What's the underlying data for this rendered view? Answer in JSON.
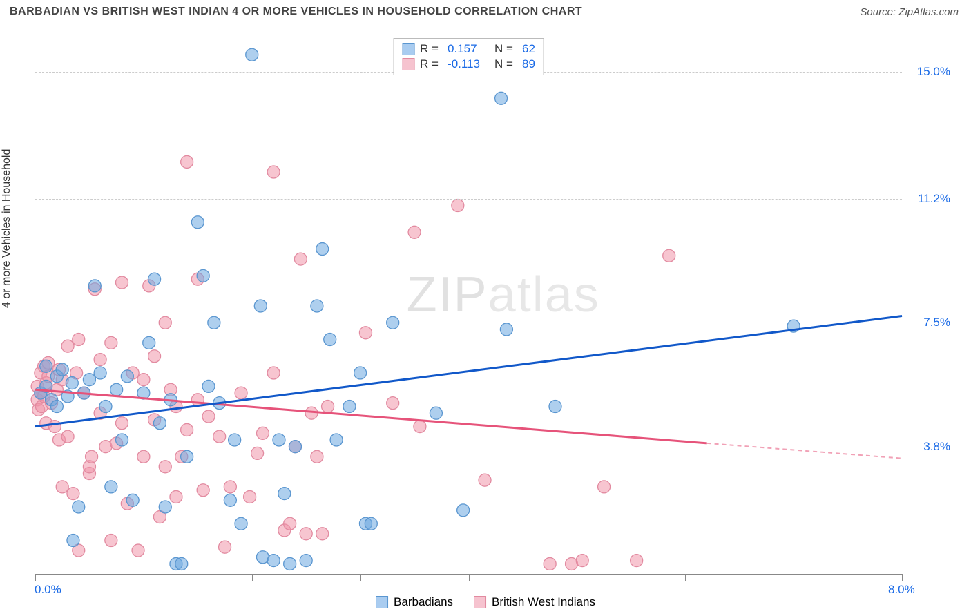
{
  "header": {
    "title": "BARBADIAN VS BRITISH WEST INDIAN 4 OR MORE VEHICLES IN HOUSEHOLD CORRELATION CHART",
    "source_prefix": "Source: ",
    "source": "ZipAtlas.com",
    "title_color": "#444444",
    "title_fontsize": 16,
    "source_color": "#555555",
    "source_fontsize": 15
  },
  "watermark": {
    "bold": "ZIP",
    "light": "atlas"
  },
  "chart": {
    "type": "scatter-correlation",
    "background_color": "#ffffff",
    "xlim": [
      0,
      8
    ],
    "ylim": [
      0,
      16
    ],
    "x_axis": {
      "left_label": "0.0%",
      "right_label": "8.0%",
      "label_color": "#1a6ae6",
      "tick_count": 9,
      "tick_color": "#888888"
    },
    "y_axis": {
      "title": "4 or more Vehicles in Household",
      "title_color": "#333333",
      "labels": [
        {
          "value": 15.0,
          "text": "15.0%"
        },
        {
          "value": 11.2,
          "text": "11.2%"
        },
        {
          "value": 7.5,
          "text": "7.5%"
        },
        {
          "value": 3.8,
          "text": "3.8%"
        }
      ],
      "label_color": "#1a6ae6",
      "grid_color": "#cccccc"
    },
    "series": [
      {
        "key": "barbadians",
        "name": "Barbadians",
        "R": "0.157",
        "N": "62",
        "marker_fill": "rgba(108,168,224,0.55)",
        "marker_stroke": "#5a96d0",
        "swatch_fill": "#a9ccf0",
        "swatch_border": "#5a96d0",
        "line_color": "#1158c9",
        "line": {
          "x1": 0,
          "y1": 4.4,
          "x2": 8,
          "y2": 7.7
        },
        "extrapolate": false,
        "marker_radius": 9,
        "points": [
          [
            0.05,
            5.4
          ],
          [
            0.1,
            5.6
          ],
          [
            0.15,
            5.2
          ],
          [
            0.1,
            6.2
          ],
          [
            0.2,
            5.0
          ],
          [
            0.2,
            5.9
          ],
          [
            0.25,
            6.1
          ],
          [
            0.3,
            5.3
          ],
          [
            0.34,
            5.7
          ],
          [
            0.35,
            1.0
          ],
          [
            0.4,
            2.0
          ],
          [
            0.45,
            5.4
          ],
          [
            0.5,
            5.8
          ],
          [
            0.55,
            8.6
          ],
          [
            0.6,
            6.0
          ],
          [
            0.65,
            5.0
          ],
          [
            0.7,
            2.6
          ],
          [
            0.75,
            5.5
          ],
          [
            0.8,
            4.0
          ],
          [
            0.85,
            5.9
          ],
          [
            0.9,
            2.2
          ],
          [
            1.0,
            5.4
          ],
          [
            1.05,
            6.9
          ],
          [
            1.1,
            8.8
          ],
          [
            1.15,
            4.5
          ],
          [
            1.2,
            2.0
          ],
          [
            1.25,
            5.2
          ],
          [
            1.3,
            0.3
          ],
          [
            1.35,
            0.3
          ],
          [
            1.4,
            3.5
          ],
          [
            1.5,
            10.5
          ],
          [
            1.55,
            8.9
          ],
          [
            1.6,
            5.6
          ],
          [
            1.65,
            7.5
          ],
          [
            1.7,
            5.1
          ],
          [
            1.8,
            2.2
          ],
          [
            1.84,
            4.0
          ],
          [
            1.9,
            1.5
          ],
          [
            2.0,
            15.5
          ],
          [
            2.08,
            8.0
          ],
          [
            2.1,
            0.5
          ],
          [
            2.2,
            0.4
          ],
          [
            2.25,
            4.0
          ],
          [
            2.3,
            2.4
          ],
          [
            2.35,
            0.3
          ],
          [
            2.4,
            3.8
          ],
          [
            2.5,
            0.4
          ],
          [
            2.65,
            9.7
          ],
          [
            2.6,
            8.0
          ],
          [
            2.72,
            7.0
          ],
          [
            2.78,
            4.0
          ],
          [
            2.9,
            5.0
          ],
          [
            3.0,
            6.0
          ],
          [
            3.05,
            1.5
          ],
          [
            3.1,
            1.5
          ],
          [
            3.3,
            7.5
          ],
          [
            3.7,
            4.8
          ],
          [
            3.95,
            1.9
          ],
          [
            4.3,
            14.2
          ],
          [
            4.35,
            7.3
          ],
          [
            4.8,
            5.0
          ],
          [
            7.0,
            7.4
          ]
        ]
      },
      {
        "key": "bwi",
        "name": "British West Indians",
        "R": "-0.113",
        "N": "89",
        "marker_fill": "rgba(240,150,170,0.55)",
        "marker_stroke": "#e28aa0",
        "swatch_fill": "#f6c3cf",
        "swatch_border": "#e28aa0",
        "line_color": "#e6537a",
        "line": {
          "x1": 0,
          "y1": 5.5,
          "x2": 6.2,
          "y2": 3.9
        },
        "extrapolate": true,
        "extrap_to": {
          "x2": 8,
          "y2": 3.45
        },
        "marker_radius": 9,
        "points": [
          [
            0.02,
            5.2
          ],
          [
            0.02,
            5.6
          ],
          [
            0.03,
            4.9
          ],
          [
            0.05,
            5.4
          ],
          [
            0.05,
            6.0
          ],
          [
            0.06,
            5.0
          ],
          [
            0.08,
            5.3
          ],
          [
            0.08,
            6.2
          ],
          [
            0.1,
            5.7
          ],
          [
            0.1,
            4.5
          ],
          [
            0.12,
            5.9
          ],
          [
            0.12,
            6.3
          ],
          [
            0.15,
            5.1
          ],
          [
            0.18,
            4.4
          ],
          [
            0.2,
            5.5
          ],
          [
            0.22,
            6.1
          ],
          [
            0.22,
            4.0
          ],
          [
            0.25,
            2.6
          ],
          [
            0.25,
            5.8
          ],
          [
            0.3,
            4.1
          ],
          [
            0.3,
            6.8
          ],
          [
            0.35,
            2.4
          ],
          [
            0.38,
            6.0
          ],
          [
            0.4,
            7.0
          ],
          [
            0.4,
            0.7
          ],
          [
            0.45,
            5.4
          ],
          [
            0.5,
            3.0
          ],
          [
            0.5,
            3.2
          ],
          [
            0.52,
            3.5
          ],
          [
            0.55,
            8.5
          ],
          [
            0.6,
            4.8
          ],
          [
            0.6,
            6.4
          ],
          [
            0.65,
            3.8
          ],
          [
            0.7,
            6.9
          ],
          [
            0.7,
            1.0
          ],
          [
            0.75,
            3.9
          ],
          [
            0.8,
            4.5
          ],
          [
            0.8,
            8.7
          ],
          [
            0.85,
            2.1
          ],
          [
            0.9,
            6.0
          ],
          [
            0.95,
            0.7
          ],
          [
            1.0,
            5.8
          ],
          [
            1.0,
            3.5
          ],
          [
            1.05,
            8.6
          ],
          [
            1.1,
            6.5
          ],
          [
            1.1,
            4.6
          ],
          [
            1.15,
            1.7
          ],
          [
            1.2,
            7.5
          ],
          [
            1.2,
            3.2
          ],
          [
            1.25,
            5.5
          ],
          [
            1.3,
            2.3
          ],
          [
            1.3,
            5.0
          ],
          [
            1.35,
            3.5
          ],
          [
            1.4,
            12.3
          ],
          [
            1.4,
            4.3
          ],
          [
            1.5,
            5.2
          ],
          [
            1.5,
            8.8
          ],
          [
            1.55,
            2.5
          ],
          [
            1.6,
            4.7
          ],
          [
            1.7,
            4.1
          ],
          [
            1.75,
            0.8
          ],
          [
            1.8,
            2.6
          ],
          [
            1.9,
            5.4
          ],
          [
            1.98,
            2.3
          ],
          [
            2.05,
            3.6
          ],
          [
            2.1,
            4.2
          ],
          [
            2.2,
            12.0
          ],
          [
            2.2,
            6.0
          ],
          [
            2.3,
            1.3
          ],
          [
            2.35,
            1.5
          ],
          [
            2.4,
            3.8
          ],
          [
            2.45,
            9.4
          ],
          [
            2.5,
            1.2
          ],
          [
            2.55,
            4.8
          ],
          [
            2.6,
            3.5
          ],
          [
            2.65,
            1.2
          ],
          [
            2.7,
            5.0
          ],
          [
            3.05,
            7.2
          ],
          [
            3.3,
            5.1
          ],
          [
            3.5,
            10.2
          ],
          [
            3.55,
            4.4
          ],
          [
            3.9,
            11.0
          ],
          [
            4.15,
            2.8
          ],
          [
            4.75,
            0.3
          ],
          [
            4.95,
            0.3
          ],
          [
            5.05,
            0.4
          ],
          [
            5.25,
            2.6
          ],
          [
            5.55,
            0.4
          ],
          [
            5.85,
            9.5
          ]
        ]
      }
    ],
    "stats_box": {
      "R_color": "#1a6ae6",
      "N_color": "#1a6ae6",
      "border": "#bbbbbb"
    }
  }
}
